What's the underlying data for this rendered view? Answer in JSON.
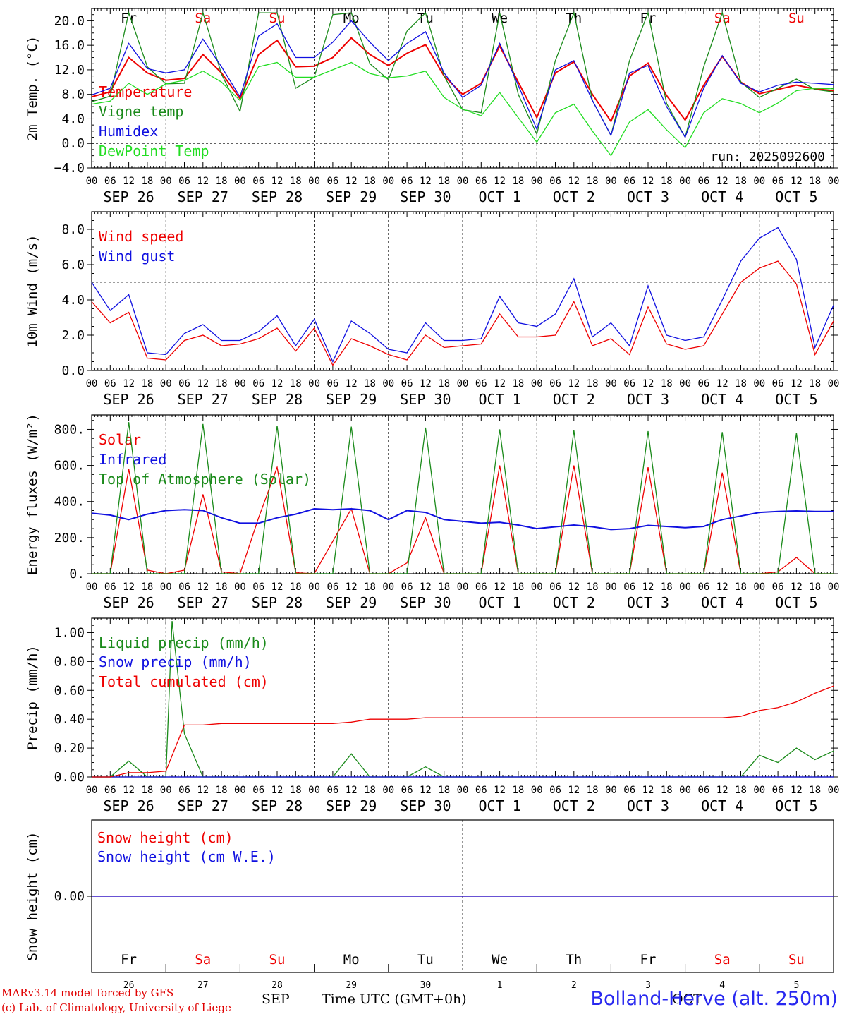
{
  "colors": {
    "red": "#ee0000",
    "green": "#1a8a1a",
    "blue": "#1010e0",
    "lightgreen": "#22dd22",
    "weekday": "#000000",
    "weekend": "#ee0000"
  },
  "footer": {
    "model": "MARv3.14 model forced by GFS",
    "credit": "(c) Lab. of Climatology, University of Liege",
    "month1": "SEP",
    "time_label": "Time UTC (GMT+0h)",
    "month2": "OCT",
    "station": "Bolland-Herve (alt. 250m)"
  },
  "chart_data": [
    {
      "type": "line",
      "ylabel": "2m Temp. (°C)",
      "ylim": [
        -4,
        22
      ],
      "yticks": [
        "20.0",
        "16.0",
        "12.0",
        "8.0",
        "4.0",
        "0.0",
        "−4.0"
      ],
      "dashed_reference_y": 0,
      "run_label": "run: 2025092600",
      "day_names": [
        {
          "name": "Fr",
          "weekend": false
        },
        {
          "name": "Sa",
          "weekend": true
        },
        {
          "name": "Su",
          "weekend": true
        },
        {
          "name": "Mo",
          "weekend": false
        },
        {
          "name": "Tu",
          "weekend": false
        },
        {
          "name": "We",
          "weekend": false
        },
        {
          "name": "Th",
          "weekend": false
        },
        {
          "name": "Fr",
          "weekend": false
        },
        {
          "name": "Sa",
          "weekend": true
        },
        {
          "name": "Su",
          "weekend": true
        }
      ],
      "x_hours": [
        0,
        6,
        12,
        18,
        24,
        30,
        36,
        42,
        48,
        54,
        60,
        66,
        72,
        78,
        84,
        90,
        96,
        102,
        108,
        114,
        120,
        126,
        132,
        138,
        144,
        150,
        156,
        162,
        168,
        174,
        180,
        186,
        192,
        198,
        204,
        210,
        216,
        222,
        228,
        234,
        240
      ],
      "series": [
        {
          "name": "Temperature",
          "color": "red",
          "values": [
            7.6,
            8.4,
            14,
            11.5,
            10.3,
            10.6,
            14.5,
            11.5,
            7.3,
            14.5,
            16.8,
            12.5,
            12.6,
            14,
            17.2,
            14.5,
            12.7,
            14.7,
            16.1,
            11,
            8,
            9.8,
            15.9,
            10,
            4.2,
            11.5,
            13.3,
            8,
            3.6,
            11,
            13.1,
            7.8,
            3.8,
            9.5,
            14.2,
            10,
            8.1,
            8.8,
            9.5,
            8.9,
            8.6
          ]
        },
        {
          "name": "Vigne temp",
          "color": "green",
          "values": [
            6.8,
            7.7,
            21.3,
            12.5,
            9.7,
            9.8,
            21.3,
            11.3,
            5.2,
            21.3,
            21.3,
            9,
            10.8,
            21,
            21.3,
            13,
            10.4,
            18.3,
            21.3,
            11,
            5.5,
            5,
            21.3,
            8,
            1.5,
            13.5,
            21.3,
            7,
            1.3,
            13.5,
            21.3,
            6.5,
            1,
            12.5,
            21.3,
            10,
            7.5,
            9,
            10.5,
            8.8,
            8.4
          ]
        },
        {
          "name": "Humidex",
          "color": "blue",
          "values": [
            7.9,
            9,
            16.3,
            12.2,
            11.5,
            12,
            17,
            12.5,
            7.6,
            17.5,
            19.5,
            14,
            14,
            16.5,
            20,
            16.5,
            13.5,
            16.3,
            18.2,
            11.5,
            7.5,
            9.5,
            16.3,
            9.5,
            2.3,
            12,
            13.5,
            7,
            1.3,
            11.5,
            12.7,
            6,
            1,
            9,
            14.3,
            9.8,
            8.4,
            9.5,
            10,
            9.8,
            9.6
          ]
        },
        {
          "name": "DewPoint Temp",
          "color": "lightgreen",
          "values": [
            6.4,
            6.9,
            9.8,
            8,
            9.7,
            10.3,
            11.8,
            10,
            7,
            12.5,
            13.2,
            10.8,
            10.8,
            12,
            13.2,
            11.4,
            10.7,
            11,
            11.8,
            7.5,
            5.6,
            4.5,
            8.3,
            4.2,
            0.2,
            5,
            6.4,
            2,
            -2,
            3.5,
            5.5,
            2.2,
            -0.7,
            5,
            7.3,
            6.5,
            5,
            6.6,
            8.6,
            9,
            8.9
          ]
        }
      ]
    },
    {
      "type": "line",
      "ylabel": "10m Wind (m/s)",
      "ylim": [
        0,
        9
      ],
      "yticks": [
        "8.0",
        "6.0",
        "4.0",
        "2.0",
        "0.0"
      ],
      "dashed_reference_y": 5,
      "x_hours": [
        0,
        6,
        12,
        18,
        24,
        30,
        36,
        42,
        48,
        54,
        60,
        66,
        72,
        78,
        84,
        90,
        96,
        102,
        108,
        114,
        120,
        126,
        132,
        138,
        144,
        150,
        156,
        162,
        168,
        174,
        180,
        186,
        192,
        198,
        204,
        210,
        216,
        222,
        228,
        234,
        240
      ],
      "series": [
        {
          "name": "Wind speed",
          "color": "red",
          "values": [
            3.9,
            2.7,
            3.3,
            0.7,
            0.6,
            1.7,
            2,
            1.4,
            1.5,
            1.8,
            2.4,
            1.1,
            2.4,
            0.3,
            1.8,
            1.4,
            0.9,
            0.6,
            2,
            1.3,
            1.4,
            1.5,
            3.2,
            1.9,
            1.9,
            2,
            3.9,
            1.4,
            1.8,
            0.9,
            3.6,
            1.5,
            1.2,
            1.4,
            3.2,
            5,
            5.8,
            6.2,
            4.9,
            0.9,
            2.8
          ]
        },
        {
          "name": "Wind gust",
          "color": "blue",
          "values": [
            5,
            3.4,
            4.3,
            1,
            0.9,
            2.1,
            2.6,
            1.7,
            1.7,
            2.2,
            3.1,
            1.4,
            2.9,
            0.5,
            2.8,
            2.1,
            1.2,
            1,
            2.7,
            1.7,
            1.7,
            1.8,
            4.2,
            2.7,
            2.5,
            3.2,
            5.2,
            1.9,
            2.7,
            1.4,
            4.8,
            2,
            1.7,
            1.9,
            4,
            6.2,
            7.5,
            8.1,
            6.3,
            1.3,
            3.7
          ]
        }
      ]
    },
    {
      "type": "line",
      "ylabel": "Energy fluxes (W/m²)",
      "ylim": [
        0,
        880
      ],
      "yticks": [
        "800.",
        "600.",
        "400.",
        "200.",
        "0."
      ],
      "x_hours": [
        0,
        6,
        12,
        18,
        24,
        30,
        36,
        42,
        48,
        54,
        60,
        66,
        72,
        78,
        84,
        90,
        96,
        102,
        108,
        114,
        120,
        126,
        132,
        138,
        144,
        150,
        156,
        162,
        168,
        174,
        180,
        186,
        192,
        198,
        204,
        210,
        216,
        222,
        228,
        234,
        240
      ],
      "series": [
        {
          "name": "Solar",
          "color": "red",
          "values": [
            0,
            0,
            580,
            20,
            0,
            20,
            440,
            10,
            0,
            310,
            590,
            5,
            0,
            180,
            360,
            0,
            0,
            60,
            310,
            0,
            0,
            0,
            600,
            0,
            0,
            0,
            600,
            0,
            0,
            0,
            590,
            0,
            0,
            0,
            560,
            0,
            0,
            10,
            90,
            0,
            0
          ]
        },
        {
          "name": "Infrared",
          "color": "blue",
          "values": [
            335,
            325,
            300,
            330,
            350,
            355,
            350,
            310,
            280,
            280,
            310,
            330,
            360,
            355,
            360,
            350,
            300,
            350,
            340,
            300,
            290,
            280,
            285,
            270,
            250,
            260,
            270,
            260,
            245,
            250,
            268,
            262,
            255,
            262,
            300,
            320,
            340,
            345,
            348,
            345,
            345
          ]
        },
        {
          "name": "Top of Atmosphere (Solar)",
          "color": "green",
          "values": [
            0,
            0,
            840,
            0,
            0,
            0,
            830,
            0,
            0,
            0,
            820,
            0,
            0,
            0,
            815,
            0,
            0,
            0,
            810,
            0,
            0,
            0,
            800,
            0,
            0,
            0,
            795,
            0,
            0,
            0,
            790,
            0,
            0,
            0,
            785,
            0,
            0,
            0,
            780,
            0,
            0
          ]
        }
      ]
    },
    {
      "type": "line",
      "ylabel": "Precip (mm/h)",
      "ylim": [
        0,
        1.1
      ],
      "yticks": [
        "1.00",
        "0.80",
        "0.60",
        "0.40",
        "0.20",
        "0.00"
      ],
      "x_hours": [
        0,
        6,
        12,
        18,
        24,
        30,
        36,
        42,
        48,
        54,
        60,
        66,
        72,
        78,
        84,
        90,
        96,
        102,
        108,
        114,
        120,
        126,
        132,
        138,
        144,
        150,
        156,
        162,
        168,
        174,
        180,
        186,
        192,
        198,
        204,
        210,
        216,
        222,
        228,
        234,
        240
      ],
      "series": [
        {
          "name": "Liquid precip (mm/h)",
          "color": "green",
          "values": [
            0,
            0,
            0.11,
            0,
            0,
            0.3,
            0,
            0,
            0,
            0,
            0,
            0,
            0,
            0,
            0.16,
            0,
            0,
            0,
            0.07,
            0,
            0,
            0,
            0,
            0,
            0,
            0,
            0,
            0,
            0,
            0,
            0,
            0,
            0,
            0,
            0,
            0,
            0.15,
            0.1,
            0.2,
            0.12,
            0.18
          ]
        },
        {
          "name": "Snow precip (mm/h)",
          "color": "blue",
          "values": [
            0,
            0,
            0,
            0,
            0,
            0,
            0,
            0,
            0,
            0,
            0,
            0,
            0,
            0,
            0,
            0,
            0,
            0,
            0,
            0,
            0,
            0,
            0,
            0,
            0,
            0,
            0,
            0,
            0,
            0,
            0,
            0,
            0,
            0,
            0,
            0,
            0,
            0,
            0,
            0,
            0
          ]
        },
        {
          "name": "Total cumulated (cm)",
          "color": "red",
          "values": [
            0,
            0,
            0.03,
            0.03,
            0.04,
            0.36,
            0.36,
            0.37,
            0.37,
            0.37,
            0.37,
            0.37,
            0.37,
            0.37,
            0.38,
            0.4,
            0.4,
            0.4,
            0.41,
            0.41,
            0.41,
            0.41,
            0.41,
            0.41,
            0.41,
            0.41,
            0.41,
            0.41,
            0.41,
            0.41,
            0.41,
            0.41,
            0.41,
            0.41,
            0.41,
            0.42,
            0.46,
            0.48,
            0.52,
            0.58,
            0.63
          ]
        }
      ],
      "liquid_spike": {
        "hour": 26,
        "value": 1.08
      }
    },
    {
      "type": "line",
      "ylabel": "Snow height (cm)",
      "ylim": [
        -1,
        1
      ],
      "yticks": [
        "0.00"
      ],
      "x_hours": [
        0,
        240
      ],
      "series": [
        {
          "name": "Snow height (cm)",
          "color": "red",
          "values": [
            0,
            0
          ]
        },
        {
          "name": "Snow height (cm W.E.)",
          "color": "blue",
          "values": [
            0,
            0
          ]
        }
      ]
    }
  ],
  "x_axis": {
    "hour_labels": [
      "00",
      "06",
      "12",
      "18"
    ],
    "final_label": "00",
    "day_labels": [
      "SEP 26",
      "SEP 27",
      "SEP 28",
      "SEP 29",
      "SEP 30",
      "OCT  1",
      "OCT  2",
      "OCT  3",
      "OCT  4",
      "OCT  5"
    ],
    "bottom_day_numbers": [
      "26",
      "27",
      "28",
      "29",
      "30",
      "1",
      "2",
      "3",
      "4",
      "5"
    ]
  }
}
